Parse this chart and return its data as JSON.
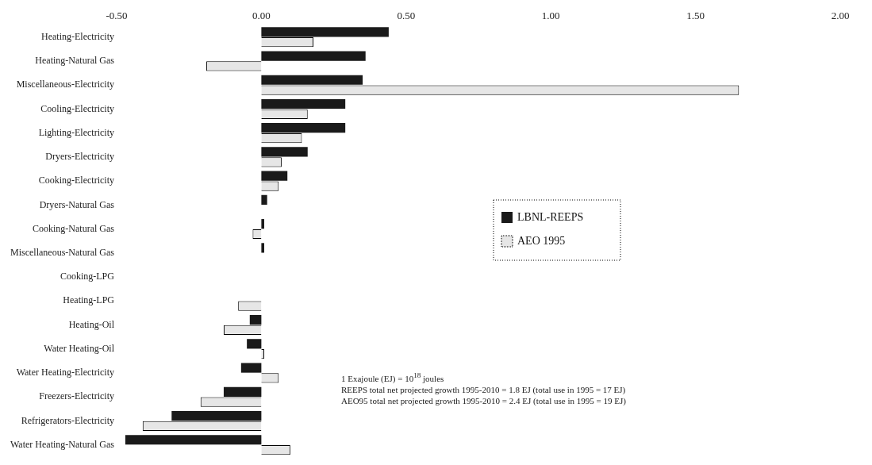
{
  "chart_data": {
    "type": "bar",
    "orientation": "horizontal",
    "categories": [
      "Heating-Electricity",
      "Heating-Natural Gas",
      "Miscellaneous-Electricity",
      "Cooling-Electricity",
      "Lighting-Electricity",
      "Dryers-Electricity",
      "Cooking-Electricity",
      "Dryers-Natural Gas",
      "Cooking-Natural Gas",
      "Miscellaneous-Natural Gas",
      "Cooking-LPG",
      "Heating-LPG",
      "Heating-Oil",
      "Water Heating-Oil",
      "Water Heating-Electricity",
      "Freezers-Electricity",
      "Refrigerators-Electricity",
      "Water Heating-Natural Gas"
    ],
    "series": [
      {
        "name": "LBNL-REEPS",
        "color": "#1a1a1a",
        "values": [
          0.44,
          0.36,
          0.35,
          0.29,
          0.29,
          0.16,
          0.09,
          0.02,
          0.01,
          0.01,
          0.0,
          0.0,
          -0.04,
          -0.05,
          -0.07,
          -0.13,
          -0.31,
          -0.47
        ]
      },
      {
        "name": "AEO 1995",
        "color": "#e6e6e6",
        "values": [
          0.18,
          -0.19,
          1.65,
          0.16,
          0.14,
          0.07,
          0.06,
          0.0,
          -0.03,
          0.0,
          0.0,
          -0.08,
          -0.13,
          0.01,
          0.06,
          -0.21,
          -0.41,
          0.1
        ]
      }
    ],
    "xlim": [
      -0.5,
      2.0
    ],
    "xticks": [
      {
        "value": -0.5,
        "label": "-0.50"
      },
      {
        "value": 0,
        "label": "0.00"
      },
      {
        "value": 0.5,
        "label": "0.50"
      },
      {
        "value": 1,
        "label": "1.00"
      },
      {
        "value": 1.5,
        "label": "1.50"
      },
      {
        "value": 2,
        "label": "2.00"
      }
    ],
    "grid": false,
    "legend": "right",
    "annotations": [
      "1 Exajoule (EJ) = 10$^{18}$ joules",
      "REEPS total net projected growth 1995-2010 = 1.8 EJ (total use in 1995 = 17 EJ)",
      "AEO95 total net projected growth 1995-2010 = 2.4 EJ (total use in 1995 = 19 EJ)"
    ]
  }
}
